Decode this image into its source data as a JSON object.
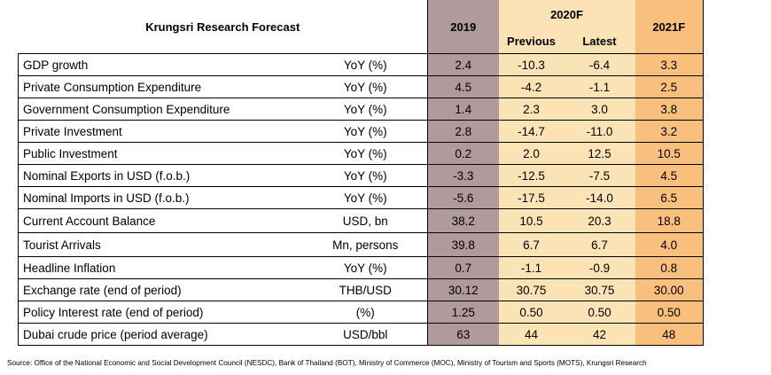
{
  "table": {
    "title": "Krungsri Research Forecast",
    "headers": {
      "y2019": "2019",
      "y2020": "2020F",
      "previous": "Previous",
      "latest": "Latest",
      "y2021": "2021F"
    },
    "rows": [
      {
        "label": "GDP growth",
        "unit": "YoY (%)",
        "v2019": "2.4",
        "prev": "-10.3",
        "latest": "-6.4",
        "v2021": "3.3"
      },
      {
        "label": "Private Consumption Expenditure",
        "unit": "YoY (%)",
        "v2019": "4.5",
        "prev": "-4.2",
        "latest": "-1.1",
        "v2021": "2.5"
      },
      {
        "label": "Government Consumption Expenditure",
        "unit": "YoY (%)",
        "v2019": "1.4",
        "prev": "2.3",
        "latest": "3.0",
        "v2021": "3.8"
      },
      {
        "label": "Private Investment",
        "unit": "YoY (%)",
        "v2019": "2.8",
        "prev": "-14.7",
        "latest": "-11.0",
        "v2021": "3.2"
      },
      {
        "label": "Public Investment",
        "unit": "YoY (%)",
        "v2019": "0.2",
        "prev": "2.0",
        "latest": "12.5",
        "v2021": "10.5"
      },
      {
        "label": "Nominal Exports in USD (f.o.b.)",
        "unit": "YoY (%)",
        "v2019": "-3.3",
        "prev": "-12.5",
        "latest": "-7.5",
        "v2021": "4.5"
      },
      {
        "label": "Nominal Imports in USD (f.o.b.)",
        "unit": "YoY (%)",
        "v2019": "-5.6",
        "prev": "-17.5",
        "latest": "-14.0",
        "v2021": "6.5"
      },
      {
        "label": "Current Account Balance",
        "unit": "USD, bn",
        "v2019": "38.2",
        "prev": "10.5",
        "latest": "20.3",
        "v2021": "18.8"
      },
      {
        "label": "Tourist Arrivals",
        "unit": "Mn, persons",
        "v2019": "39.8",
        "prev": "6.7",
        "latest": "6.7",
        "v2021": "4.0"
      },
      {
        "label": "Headline Inflation",
        "unit": "YoY (%)",
        "v2019": "0.7",
        "prev": "-1.1",
        "latest": "-0.9",
        "v2021": "0.8"
      },
      {
        "label": "Exchange rate (end of period)",
        "unit": "THB/USD",
        "v2019": "30.12",
        "prev": "30.75",
        "latest": "30.75",
        "v2021": "30.00"
      },
      {
        "label": "Policy Interest rate (end of period)",
        "unit": "(%)",
        "v2019": "1.25",
        "prev": "0.50",
        "latest": "0.50",
        "v2021": "0.50"
      },
      {
        "label": "Dubai crude price (period average)",
        "unit": "USD/bbl",
        "v2019": "63",
        "prev": "44",
        "latest": "42",
        "v2021": "48"
      }
    ]
  },
  "source": "Source: Office of the National Economic and Social Development Council (NESDC), Bank of Thailand (BOT), Ministry of Commerce (MOC), Ministry of Tourism and Sports (MOTS), Krungsri Research",
  "colors": {
    "col2019": "#b09a9c",
    "col2020": "#fce3b6",
    "col2021": "#f9bf7c"
  }
}
